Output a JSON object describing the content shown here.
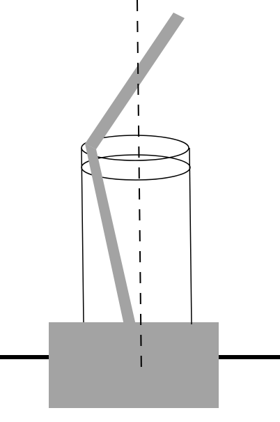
{
  "figure": {
    "title": "",
    "description_parts": [
      "optical-axis",
      "cylinder-glass",
      "bent-rod",
      "base-block",
      "table-surface"
    ],
    "colors": {
      "rod": "#a3a3a3",
      "base": "#a3a3a3",
      "line": "#000000",
      "background": "#ffffff"
    }
  }
}
